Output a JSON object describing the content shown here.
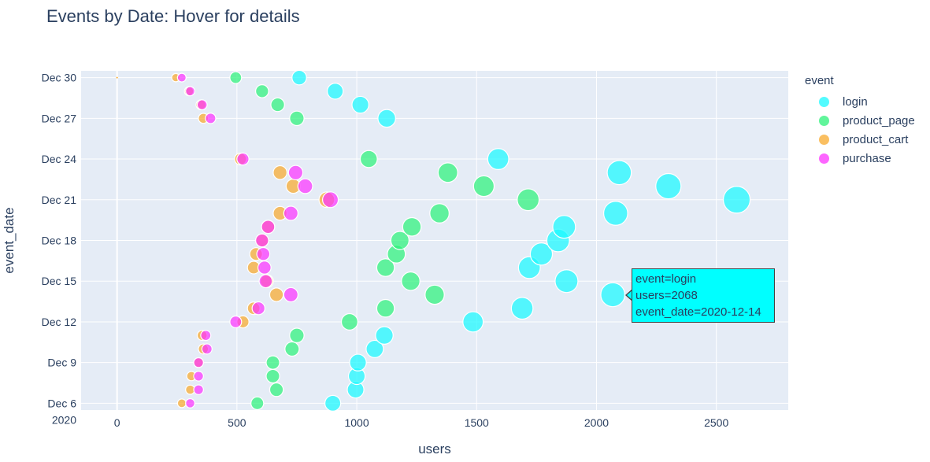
{
  "title": "Events by Date: Hover for details",
  "chart_data": {
    "type": "scatter",
    "title": "Events by Date: Hover for details",
    "xlabel": "users",
    "ylabel": "event_date",
    "xlim": [
      -150,
      2800
    ],
    "x_ticks": [
      "0",
      "500",
      "1000",
      "1500",
      "2000",
      "2500"
    ],
    "y_tick_labels": [
      "Dec 6\n2020",
      "Dec 9",
      "Dec 12",
      "Dec 15",
      "Dec 18",
      "Dec 21",
      "Dec 24",
      "Dec 27",
      "Dec 30"
    ],
    "y_tick_dates": [
      "2020-12-06",
      "2020-12-09",
      "2020-12-12",
      "2020-12-15",
      "2020-12-18",
      "2020-12-21",
      "2020-12-24",
      "2020-12-27",
      "2020-12-30"
    ],
    "ylim": [
      "2020-12-05 12:00",
      "2020-12-30 12:00"
    ],
    "grid": true,
    "legend_title": "event",
    "legend_position": "right",
    "dates": [
      "2020-12-06",
      "2020-12-07",
      "2020-12-08",
      "2020-12-09",
      "2020-12-10",
      "2020-12-11",
      "2020-12-12",
      "2020-12-13",
      "2020-12-14",
      "2020-12-15",
      "2020-12-16",
      "2020-12-17",
      "2020-12-18",
      "2020-12-19",
      "2020-12-20",
      "2020-12-21",
      "2020-12-22",
      "2020-12-23",
      "2020-12-24",
      "2020-12-25",
      "2020-12-26",
      "2020-12-27",
      "2020-12-28",
      "2020-12-29",
      "2020-12-30"
    ],
    "series": [
      {
        "name": "login",
        "color": "#19f9ff",
        "values": [
          900,
          995,
          1000,
          1005,
          1075,
          1115,
          1485,
          1690,
          2068,
          1875,
          1720,
          1770,
          1840,
          1865,
          2080,
          2585,
          2300,
          2095,
          1590,
          null,
          null,
          1125,
          1015,
          910,
          760
        ]
      },
      {
        "name": "product_page",
        "color": "#2cf27a",
        "values": [
          585,
          665,
          650,
          650,
          730,
          750,
          970,
          1120,
          1325,
          1225,
          1120,
          1165,
          1180,
          1230,
          1345,
          1715,
          1530,
          1380,
          1050,
          null,
          null,
          750,
          670,
          605,
          495
        ]
      },
      {
        "name": "product_cart",
        "color": "#f8a92c",
        "values": [
          270,
          305,
          310,
          340,
          360,
          355,
          525,
          570,
          665,
          625,
          570,
          580,
          605,
          630,
          680,
          875,
          735,
          680,
          515,
          null,
          null,
          360,
          350,
          300,
          245
        ]
      },
      {
        "name": "purchase",
        "color": "#fc33ff",
        "values": [
          305,
          340,
          340,
          340,
          375,
          370,
          495,
          590,
          725,
          620,
          615,
          610,
          605,
          630,
          725,
          890,
          785,
          745,
          525,
          null,
          null,
          390,
          355,
          305,
          270
        ]
      }
    ]
  },
  "tooltip": {
    "line1": "event=login",
    "line2": "users=2068",
    "line3": "event_date=2020-12-14"
  }
}
